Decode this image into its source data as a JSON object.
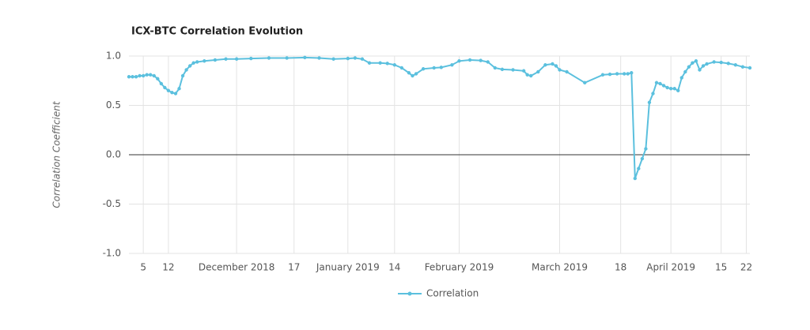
{
  "chart_data": {
    "type": "line",
    "title": "ICX-BTC Correlation Evolution",
    "y_label": "Correlation Coefficient",
    "xlim": [
      "2018-11-01",
      "2019-04-23"
    ],
    "ylim": [
      -1,
      1
    ],
    "yticks": [
      {
        "value": -1,
        "label": "-1.0"
      },
      {
        "value": -0.5,
        "label": "-0.5"
      },
      {
        "value": 0,
        "label": "0.0"
      },
      {
        "value": 0.5,
        "label": "0.5"
      },
      {
        "value": 1,
        "label": "1.0"
      }
    ],
    "xticks": [
      {
        "value": "2018-11-05",
        "label": "5"
      },
      {
        "value": "2018-11-12",
        "label": "12"
      },
      {
        "value": "2018-12-01",
        "label": "December 2018"
      },
      {
        "value": "2018-12-17",
        "label": "17"
      },
      {
        "value": "2019-01-01",
        "label": "January 2019"
      },
      {
        "value": "2019-01-14",
        "label": "14"
      },
      {
        "value": "2019-02-01",
        "label": "February 2019"
      },
      {
        "value": "2019-03-01",
        "label": "March 2019"
      },
      {
        "value": "2019-03-18",
        "label": "18"
      },
      {
        "value": "2019-04-01",
        "label": "April 2019"
      },
      {
        "value": "2019-04-15",
        "label": "15"
      },
      {
        "value": "2019-04-22",
        "label": "22"
      }
    ],
    "grid": true,
    "legend": "bottom",
    "x": [
      "2018-11-01",
      "2018-11-02",
      "2018-11-03",
      "2018-11-04",
      "2018-11-05",
      "2018-11-06",
      "2018-11-07",
      "2018-11-08",
      "2018-11-09",
      "2018-11-10",
      "2018-11-11",
      "2018-11-12",
      "2018-11-13",
      "2018-11-14",
      "2018-11-15",
      "2018-11-16",
      "2018-11-17",
      "2018-11-18",
      "2018-11-19",
      "2018-11-20",
      "2018-11-22",
      "2018-11-25",
      "2018-11-28",
      "2018-12-01",
      "2018-12-05",
      "2018-12-10",
      "2018-12-15",
      "2018-12-20",
      "2018-12-24",
      "2018-12-28",
      "2019-01-01",
      "2019-01-03",
      "2019-01-05",
      "2019-01-07",
      "2019-01-10",
      "2019-01-12",
      "2019-01-14",
      "2019-01-16",
      "2019-01-18",
      "2019-01-19",
      "2019-01-20",
      "2019-01-22",
      "2019-01-25",
      "2019-01-27",
      "2019-01-30",
      "2019-02-01",
      "2019-02-04",
      "2019-02-07",
      "2019-02-09",
      "2019-02-11",
      "2019-02-13",
      "2019-02-16",
      "2019-02-19",
      "2019-02-20",
      "2019-02-21",
      "2019-02-23",
      "2019-02-25",
      "2019-02-27",
      "2019-02-28",
      "2019-03-01",
      "2019-03-03",
      "2019-03-08",
      "2019-03-13",
      "2019-03-15",
      "2019-03-17",
      "2019-03-19",
      "2019-03-20",
      "2019-03-21",
      "2019-03-22",
      "2019-03-23",
      "2019-03-24",
      "2019-03-25",
      "2019-03-26",
      "2019-03-27",
      "2019-03-28",
      "2019-03-29",
      "2019-03-30",
      "2019-03-31",
      "2019-04-01",
      "2019-04-02",
      "2019-04-03",
      "2019-04-04",
      "2019-04-05",
      "2019-04-06",
      "2019-04-07",
      "2019-04-08",
      "2019-04-09",
      "2019-04-10",
      "2019-04-11",
      "2019-04-13",
      "2019-04-15",
      "2019-04-17",
      "2019-04-19",
      "2019-04-21",
      "2019-04-23"
    ],
    "series": [
      {
        "name": "Correlation",
        "color": "#5bc0de",
        "values": [
          0.79,
          0.79,
          0.79,
          0.8,
          0.8,
          0.81,
          0.81,
          0.8,
          0.77,
          0.72,
          0.68,
          0.65,
          0.63,
          0.62,
          0.67,
          0.8,
          0.86,
          0.9,
          0.93,
          0.94,
          0.95,
          0.96,
          0.97,
          0.97,
          0.975,
          0.98,
          0.98,
          0.985,
          0.98,
          0.97,
          0.975,
          0.98,
          0.97,
          0.93,
          0.93,
          0.925,
          0.91,
          0.88,
          0.83,
          0.8,
          0.82,
          0.87,
          0.88,
          0.885,
          0.91,
          0.95,
          0.96,
          0.955,
          0.94,
          0.88,
          0.865,
          0.86,
          0.85,
          0.81,
          0.8,
          0.84,
          0.91,
          0.92,
          0.9,
          0.86,
          0.84,
          0.73,
          0.81,
          0.815,
          0.82,
          0.82,
          0.82,
          0.83,
          -0.24,
          -0.14,
          -0.04,
          0.06,
          0.53,
          0.62,
          0.73,
          0.72,
          0.7,
          0.68,
          0.67,
          0.67,
          0.65,
          0.78,
          0.84,
          0.89,
          0.93,
          0.95,
          0.86,
          0.9,
          0.92,
          0.94,
          0.935,
          0.925,
          0.91,
          0.89,
          0.88
        ]
      }
    ]
  }
}
